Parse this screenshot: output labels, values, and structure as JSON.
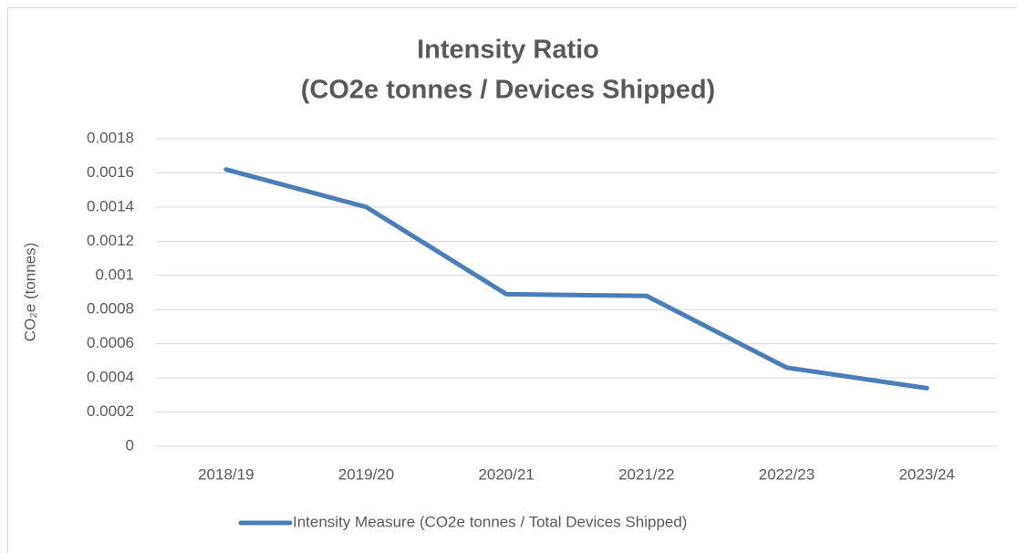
{
  "chart_data": {
    "type": "line",
    "title": "Intensity Ratio",
    "subtitle": "(CO2e tonnes / Devices Shipped)",
    "y_label": "CO₂e (tonnes)",
    "categories": [
      "2018/19",
      "2019/20",
      "2020/21",
      "2021/22",
      "2022/23",
      "2023/24"
    ],
    "series": [
      {
        "name": "Intensity Measure (CO2e tonnes / Total Devices Shipped)",
        "color": "#4a7ebb",
        "values": [
          0.00162,
          0.0014,
          0.00089,
          0.00088,
          0.00046,
          0.00034
        ]
      }
    ],
    "ylim": [
      0,
      0.0018
    ],
    "yticks": [
      0,
      0.0002,
      0.0004,
      0.0006,
      0.0008,
      0.001,
      0.0012,
      0.0014,
      0.0016,
      0.0018
    ],
    "grid": true,
    "legend": "bottom"
  }
}
